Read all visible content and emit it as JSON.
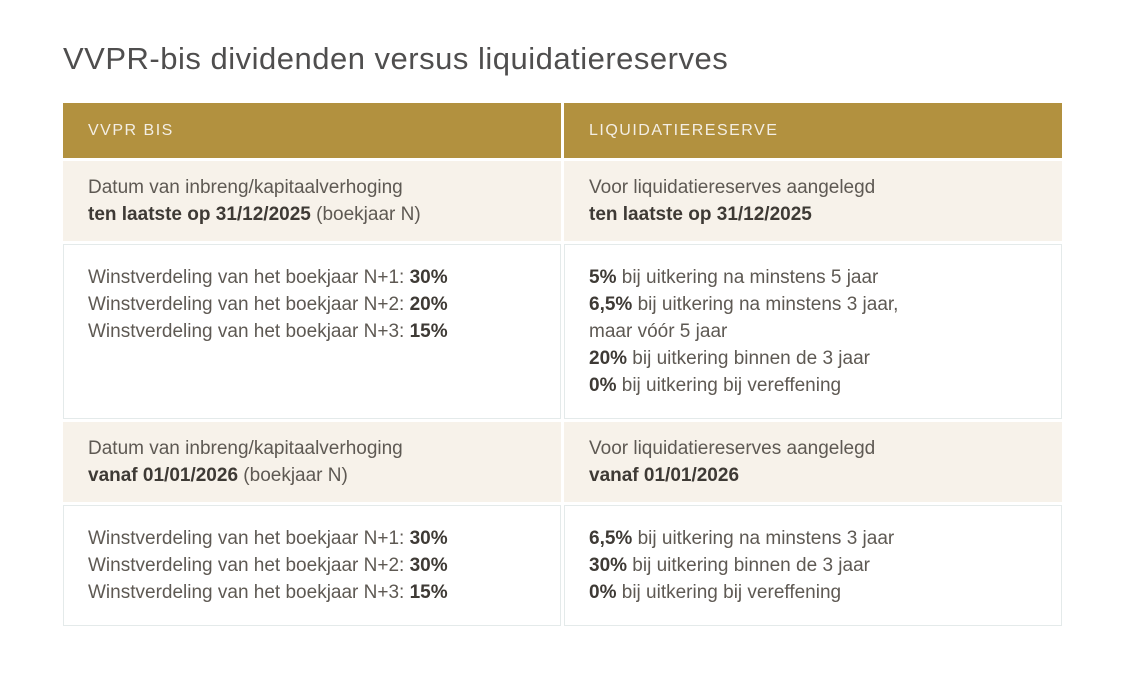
{
  "page": {
    "title": "VVPR-bis dividenden versus liquidatiereserves"
  },
  "colors": {
    "header_bg": "#b2913f",
    "header_text": "#f3eee4",
    "row_cream_bg": "#f7f2ea",
    "row_white_border": "#e4eaea",
    "text": "#5e5953",
    "text_bold": "#3e3a35",
    "title": "#4f4e4e",
    "page_bg": "#ffffff"
  },
  "table": {
    "columns": [
      {
        "label": "VVPR BIS"
      },
      {
        "label": "LIQUIDATIERESERVE"
      }
    ],
    "rows": [
      {
        "variant": "cream",
        "cells": [
          {
            "lines": [
              [
                {
                  "text": "Datum van inbreng/kapitaalverhoging",
                  "bold": false
                }
              ],
              [
                {
                  "text": "ten laatste op 31/12/2025",
                  "bold": true
                },
                {
                  "text": " (boekjaar N)",
                  "bold": false
                }
              ]
            ]
          },
          {
            "lines": [
              [
                {
                  "text": "Voor liquidatiereserves aangelegd",
                  "bold": false
                }
              ],
              [
                {
                  "text": "ten laatste op 31/12/2025",
                  "bold": true
                }
              ]
            ]
          }
        ]
      },
      {
        "variant": "white",
        "cells": [
          {
            "lines": [
              [
                {
                  "text": "Winstverdeling van het boekjaar N+1: ",
                  "bold": false
                },
                {
                  "text": "30%",
                  "bold": true
                }
              ],
              [
                {
                  "text": "Winstverdeling van het boekjaar N+2: ",
                  "bold": false
                },
                {
                  "text": "20%",
                  "bold": true
                }
              ],
              [
                {
                  "text": "Winstverdeling van het boekjaar N+3: ",
                  "bold": false
                },
                {
                  "text": "15%",
                  "bold": true
                }
              ]
            ]
          },
          {
            "lines": [
              [
                {
                  "text": "5%",
                  "bold": true
                },
                {
                  "text": " bij uitkering na minstens 5 jaar",
                  "bold": false
                }
              ],
              [
                {
                  "text": "6,5%",
                  "bold": true
                },
                {
                  "text": " bij uitkering na minstens 3 jaar,",
                  "bold": false
                }
              ],
              [
                {
                  "text": "maar vóór 5 jaar",
                  "bold": false
                }
              ],
              [
                {
                  "text": "20%",
                  "bold": true
                },
                {
                  "text": " bij uitkering binnen de 3 jaar",
                  "bold": false
                }
              ],
              [
                {
                  "text": "0%",
                  "bold": true
                },
                {
                  "text": " bij uitkering bij vereffening",
                  "bold": false
                }
              ]
            ]
          }
        ]
      },
      {
        "variant": "cream",
        "cells": [
          {
            "lines": [
              [
                {
                  "text": "Datum van inbreng/kapitaalverhoging",
                  "bold": false
                }
              ],
              [
                {
                  "text": "vanaf 01/01/2026",
                  "bold": true
                },
                {
                  "text": " (boekjaar N)",
                  "bold": false
                }
              ]
            ]
          },
          {
            "lines": [
              [
                {
                  "text": "Voor liquidatiereserves aangelegd",
                  "bold": false
                }
              ],
              [
                {
                  "text": "vanaf 01/01/2026",
                  "bold": true
                }
              ]
            ]
          }
        ]
      },
      {
        "variant": "white",
        "cells": [
          {
            "lines": [
              [
                {
                  "text": "Winstverdeling van het boekjaar N+1: ",
                  "bold": false
                },
                {
                  "text": "30%",
                  "bold": true
                }
              ],
              [
                {
                  "text": "Winstverdeling van het boekjaar N+2: ",
                  "bold": false
                },
                {
                  "text": "30%",
                  "bold": true
                }
              ],
              [
                {
                  "text": "Winstverdeling van het boekjaar N+3: ",
                  "bold": false
                },
                {
                  "text": "15%",
                  "bold": true
                }
              ]
            ]
          },
          {
            "lines": [
              [
                {
                  "text": "6,5%",
                  "bold": true
                },
                {
                  "text": " bij uitkering na minstens 3 jaar",
                  "bold": false
                }
              ],
              [
                {
                  "text": "30%",
                  "bold": true
                },
                {
                  "text": " bij uitkering binnen de 3 jaar",
                  "bold": false
                }
              ],
              [
                {
                  "text": "0%",
                  "bold": true
                },
                {
                  "text": " bij uitkering bij vereffening",
                  "bold": false
                }
              ]
            ]
          }
        ]
      }
    ]
  }
}
